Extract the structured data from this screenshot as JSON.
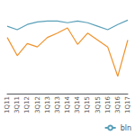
{
  "chart_data": {
    "type": "line",
    "categories": [
      "1Q11",
      "3Q11",
      "1Q12",
      "3Q12",
      "1Q13",
      "3Q13",
      "1Q14",
      "3Q14",
      "1Q15",
      "3Q15",
      "1Q16",
      "3Q16",
      "1Q17"
    ],
    "series": [
      {
        "name": "bln",
        "color": "#5aa0b8",
        "values": [
          78,
          74,
          80,
          83,
          84,
          84,
          82,
          84,
          82,
          78,
          74,
          80,
          85
        ]
      },
      {
        "color": "#f0922b",
        "values": [
          65,
          44,
          58,
          54,
          65,
          70,
          76,
          57,
          70,
          62,
          54,
          20,
          62
        ]
      }
    ],
    "ylim": [
      0,
      100
    ],
    "grid": false,
    "legend": "lower right",
    "tick_labels": "x"
  }
}
